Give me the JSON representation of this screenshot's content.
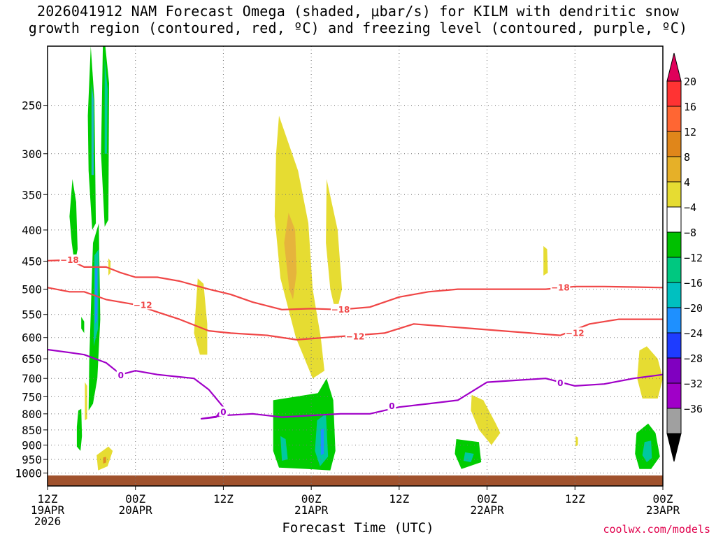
{
  "title_line1": "2026041912 NAM Forecast Omega (shaded, μbar/s) for KILM with dendritic snow",
  "title_line2": "growth region (contoured, red, ºC) and freezing level (contoured, purple, ºC)",
  "xlabel": "Forecast Time (UTC)",
  "credit": "coolwx.com/models",
  "chart_data": {
    "type": "heatmap",
    "title": "2026041912 NAM Forecast Omega (shaded, μbar/s) for KILM with dendritic snow growth region (contoured, red, ºC) and freezing level (contoured, purple, ºC)",
    "xlabel": "Forecast Time (UTC)",
    "ylabel": "",
    "x_range_hours": [
      0,
      84
    ],
    "ylim_hPa": [
      1050,
      200
    ],
    "y_scale": "log-pressure (inverted)",
    "grid": true,
    "y_ticks": [
      250,
      300,
      350,
      400,
      450,
      500,
      550,
      600,
      650,
      700,
      750,
      800,
      850,
      900,
      950,
      1000
    ],
    "x_ticks": [
      {
        "hour": 0,
        "l1": "12Z",
        "l2": "19APR",
        "l3": "2026"
      },
      {
        "hour": 12,
        "l1": "00Z",
        "l2": "20APR",
        "l3": ""
      },
      {
        "hour": 24,
        "l1": "12Z",
        "l2": "",
        "l3": ""
      },
      {
        "hour": 36,
        "l1": "00Z",
        "l2": "21APR",
        "l3": ""
      },
      {
        "hour": 48,
        "l1": "12Z",
        "l2": "",
        "l3": ""
      },
      {
        "hour": 60,
        "l1": "00Z",
        "l2": "22APR",
        "l3": ""
      },
      {
        "hour": 72,
        "l1": "12Z",
        "l2": "",
        "l3": ""
      },
      {
        "hour": 84,
        "l1": "00Z",
        "l2": "23APR",
        "l3": ""
      }
    ],
    "colorbar": {
      "labels": [
        "20",
        "16",
        "12",
        "8",
        "4",
        "−4",
        "−8",
        "−12",
        "−16",
        "−20",
        "−24",
        "−28",
        "−32",
        "−36"
      ],
      "colors": [
        "#e0005a",
        "#ff3333",
        "#ff6633",
        "#e0861a",
        "#e6b028",
        "#e6dc32",
        "#ffffff",
        "#00c000",
        "#00c880",
        "#00c0c0",
        "#1e90ff",
        "#1e3cff",
        "#8000c0",
        "#a000c8",
        "#a0a0a0",
        "#000000"
      ]
    },
    "shading_colors": {
      "green": "#00cc00",
      "teal": "#00c8a0",
      "cyan": "#22b4c8",
      "blue": "#1e90ff",
      "yellow": "#e6dc32",
      "gold": "#e6b43c",
      "orange": "#e08c28"
    },
    "omega_regions": [
      {
        "level": "green",
        "pts": [
          [
            3.4,
            330
          ],
          [
            3.9,
            360
          ],
          [
            4.1,
            430
          ],
          [
            3.7,
            455
          ],
          [
            3.3,
            420
          ],
          [
            3.0,
            380
          ]
        ]
      },
      {
        "level": "green",
        "pts": [
          [
            5.9,
            200
          ],
          [
            6.4,
            245
          ],
          [
            6.6,
            390
          ],
          [
            6.1,
            400
          ],
          [
            5.6,
            320
          ],
          [
            5.5,
            260
          ]
        ]
      },
      {
        "level": "cyan",
        "pts": [
          [
            6.0,
            230
          ],
          [
            6.3,
            245
          ],
          [
            6.3,
            325
          ],
          [
            6.0,
            325
          ]
        ]
      },
      {
        "level": "green",
        "pts": [
          [
            7.6,
            185
          ],
          [
            8.4,
            230
          ],
          [
            8.3,
            385
          ],
          [
            7.8,
            395
          ],
          [
            7.3,
            300
          ]
        ]
      },
      {
        "level": "teal",
        "pts": [
          [
            7.8,
            210
          ],
          [
            8.2,
            235
          ],
          [
            8.1,
            300
          ],
          [
            7.8,
            300
          ]
        ]
      },
      {
        "level": "green",
        "pts": [
          [
            4.6,
            555
          ],
          [
            5.0,
            565
          ],
          [
            5.0,
            590
          ],
          [
            4.6,
            580
          ]
        ]
      },
      {
        "level": "green",
        "pts": [
          [
            6.2,
            420
          ],
          [
            7.0,
            390
          ],
          [
            7.2,
            560
          ],
          [
            6.8,
            700
          ],
          [
            6.2,
            770
          ],
          [
            5.6,
            790
          ],
          [
            5.7,
            650
          ]
        ]
      },
      {
        "level": "teal",
        "pts": [
          [
            6.4,
            440
          ],
          [
            7.0,
            430
          ],
          [
            6.9,
            580
          ],
          [
            6.3,
            620
          ]
        ]
      },
      {
        "level": "blue",
        "pts": [
          [
            6.5,
            460
          ],
          [
            6.8,
            455
          ],
          [
            6.8,
            560
          ],
          [
            6.5,
            570
          ]
        ]
      },
      {
        "level": "green",
        "pts": [
          [
            4.2,
            790
          ],
          [
            4.6,
            785
          ],
          [
            4.7,
            870
          ],
          [
            4.5,
            920
          ],
          [
            4.0,
            905
          ],
          [
            4.0,
            840
          ]
        ]
      },
      {
        "level": "yellow",
        "pts": [
          [
            5.1,
            710
          ],
          [
            5.4,
            720
          ],
          [
            5.4,
            815
          ],
          [
            5.1,
            820
          ]
        ]
      },
      {
        "level": "yellow",
        "pts": [
          [
            6.7,
            935
          ],
          [
            8.3,
            905
          ],
          [
            8.9,
            920
          ],
          [
            8.2,
            975
          ],
          [
            6.9,
            990
          ]
        ]
      },
      {
        "level": "orange",
        "pts": [
          [
            7.6,
            943
          ],
          [
            8.0,
            941
          ],
          [
            8.0,
            961
          ],
          [
            7.6,
            965
          ]
        ]
      },
      {
        "level": "yellow",
        "pts": [
          [
            8.3,
            445
          ],
          [
            8.6,
            450
          ],
          [
            8.6,
            470
          ],
          [
            8.3,
            475
          ]
        ]
      },
      {
        "level": "yellow",
        "pts": [
          [
            20.5,
            480
          ],
          [
            21.3,
            490
          ],
          [
            21.8,
            570
          ],
          [
            21.8,
            640
          ],
          [
            20.8,
            640
          ],
          [
            20.0,
            590
          ]
        ]
      },
      {
        "level": "yellow",
        "pts": [
          [
            31.6,
            260
          ],
          [
            34.2,
            320
          ],
          [
            35.6,
            390
          ],
          [
            36.2,
            500
          ],
          [
            37.3,
            600
          ],
          [
            37.8,
            680
          ],
          [
            36.2,
            700
          ],
          [
            33.9,
            600
          ],
          [
            31.8,
            480
          ],
          [
            31.0,
            380
          ],
          [
            31.2,
            300
          ]
        ]
      },
      {
        "level": "gold",
        "pts": [
          [
            32.9,
            375
          ],
          [
            33.8,
            400
          ],
          [
            34.0,
            470
          ],
          [
            33.5,
            520
          ],
          [
            33.0,
            500
          ],
          [
            32.3,
            420
          ]
        ]
      },
      {
        "level": "yellow",
        "pts": [
          [
            38.1,
            330
          ],
          [
            39.6,
            400
          ],
          [
            40.2,
            500
          ],
          [
            39.4,
            550
          ],
          [
            38.6,
            500
          ],
          [
            38.0,
            420
          ]
        ]
      },
      {
        "level": "green",
        "pts": [
          [
            30.8,
            760
          ],
          [
            36.9,
            740
          ],
          [
            38.1,
            700
          ],
          [
            39.0,
            760
          ],
          [
            39.3,
            920
          ],
          [
            38.6,
            990
          ],
          [
            35.5,
            985
          ],
          [
            31.6,
            980
          ],
          [
            30.8,
            920
          ]
        ]
      },
      {
        "level": "teal",
        "pts": [
          [
            31.8,
            870
          ],
          [
            32.5,
            880
          ],
          [
            32.8,
            950
          ],
          [
            32.0,
            955
          ]
        ]
      },
      {
        "level": "teal",
        "pts": [
          [
            36.8,
            820
          ],
          [
            38.0,
            800
          ],
          [
            38.3,
            940
          ],
          [
            37.2,
            975
          ],
          [
            36.5,
            920
          ]
        ]
      },
      {
        "level": "blue",
        "pts": [
          [
            37.3,
            850
          ],
          [
            37.7,
            845
          ],
          [
            37.7,
            930
          ],
          [
            37.3,
            935
          ]
        ]
      },
      {
        "level": "yellow",
        "pts": [
          [
            57.9,
            745
          ],
          [
            59.5,
            760
          ],
          [
            61.2,
            830
          ],
          [
            61.8,
            860
          ],
          [
            60.6,
            900
          ],
          [
            58.9,
            850
          ],
          [
            57.8,
            790
          ]
        ]
      },
      {
        "level": "green",
        "pts": [
          [
            55.8,
            880
          ],
          [
            58.9,
            890
          ],
          [
            59.2,
            960
          ],
          [
            56.5,
            985
          ],
          [
            55.6,
            930
          ]
        ]
      },
      {
        "level": "teal",
        "pts": [
          [
            57.0,
            925
          ],
          [
            58.2,
            930
          ],
          [
            57.8,
            960
          ],
          [
            56.8,
            955
          ]
        ]
      },
      {
        "level": "yellow",
        "pts": [
          [
            67.7,
            425
          ],
          [
            68.2,
            430
          ],
          [
            68.3,
            470
          ],
          [
            67.7,
            475
          ]
        ]
      },
      {
        "level": "yellow",
        "pts": [
          [
            72.1,
            870
          ],
          [
            72.4,
            875
          ],
          [
            72.4,
            900
          ],
          [
            72.1,
            905
          ]
        ]
      },
      {
        "level": "yellow",
        "pts": [
          [
            80.8,
            630
          ],
          [
            81.8,
            620
          ],
          [
            83.3,
            650
          ],
          [
            84,
            700
          ],
          [
            83.3,
            755
          ],
          [
            81.2,
            755
          ],
          [
            80.5,
            700
          ]
        ]
      },
      {
        "level": "green",
        "pts": [
          [
            80.4,
            860
          ],
          [
            82.0,
            830
          ],
          [
            83.0,
            860
          ],
          [
            83.6,
            940
          ],
          [
            82.4,
            985
          ],
          [
            80.8,
            985
          ],
          [
            80.2,
            930
          ]
        ]
      },
      {
        "level": "teal",
        "pts": [
          [
            81.5,
            890
          ],
          [
            82.4,
            885
          ],
          [
            82.5,
            945
          ],
          [
            81.8,
            960
          ],
          [
            81.2,
            935
          ]
        ]
      }
    ],
    "contours": [
      {
        "value": -18,
        "label": "−18",
        "color": "#f04646",
        "points": [
          [
            0,
            449
          ],
          [
            3,
            448
          ],
          [
            5,
            460
          ],
          [
            8,
            460
          ],
          [
            10,
            470
          ],
          [
            12,
            478
          ],
          [
            15,
            478
          ],
          [
            18,
            485
          ],
          [
            22,
            500
          ],
          [
            25,
            510
          ],
          [
            28,
            525
          ],
          [
            32,
            540
          ],
          [
            36,
            538
          ],
          [
            40,
            540
          ],
          [
            44,
            535
          ],
          [
            48,
            515
          ],
          [
            52,
            505
          ],
          [
            56,
            500
          ],
          [
            60,
            500
          ],
          [
            64,
            500
          ],
          [
            68,
            500
          ],
          [
            72,
            495
          ],
          [
            76,
            495
          ],
          [
            80,
            496
          ],
          [
            84,
            497
          ]
        ],
        "labels": [
          [
            3,
            448
          ],
          [
            40,
            540
          ],
          [
            70,
            497
          ]
        ]
      },
      {
        "value": -12,
        "label": "−12",
        "color": "#f04646",
        "points": [
          [
            0,
            497
          ],
          [
            3,
            505
          ],
          [
            5,
            505
          ],
          [
            8,
            520
          ],
          [
            10,
            525
          ],
          [
            12,
            530
          ],
          [
            15,
            545
          ],
          [
            18,
            560
          ],
          [
            22,
            585
          ],
          [
            25,
            590
          ],
          [
            30,
            595
          ],
          [
            34,
            605
          ],
          [
            38,
            600
          ],
          [
            42,
            595
          ],
          [
            46,
            590
          ],
          [
            50,
            570
          ],
          [
            54,
            575
          ],
          [
            58,
            580
          ],
          [
            62,
            585
          ],
          [
            66,
            590
          ],
          [
            70,
            595
          ],
          [
            74,
            570
          ],
          [
            78,
            560
          ],
          [
            84,
            560
          ]
        ],
        "labels": [
          [
            13,
            531
          ],
          [
            42,
            598
          ],
          [
            72,
            590
          ]
        ]
      },
      {
        "value": 0,
        "label": "0",
        "color": "#a000c8",
        "points": [
          [
            0,
            628
          ],
          [
            3,
            635
          ],
          [
            5,
            640
          ],
          [
            8,
            660
          ],
          [
            10,
            690
          ],
          [
            12,
            680
          ],
          [
            15,
            690
          ],
          [
            20,
            700
          ],
          [
            22,
            730
          ],
          [
            24,
            780
          ],
          [
            23,
            810
          ],
          [
            21,
            815
          ],
          [
            24,
            805
          ],
          [
            28,
            800
          ],
          [
            32,
            810
          ],
          [
            36,
            805
          ],
          [
            40,
            800
          ],
          [
            44,
            800
          ],
          [
            48,
            780
          ],
          [
            52,
            770
          ],
          [
            56,
            760
          ],
          [
            60,
            710
          ],
          [
            64,
            705
          ],
          [
            68,
            700
          ],
          [
            72,
            720
          ],
          [
            76,
            715
          ],
          [
            80,
            700
          ],
          [
            84,
            690
          ]
        ],
        "labels": [
          [
            10,
            692
          ],
          [
            24,
            795
          ],
          [
            47,
            777
          ],
          [
            70,
            713
          ]
        ]
      }
    ]
  }
}
